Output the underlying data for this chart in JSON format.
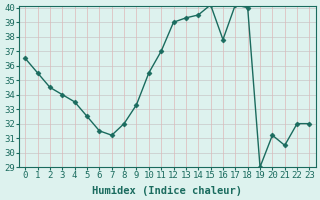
{
  "x": [
    0,
    1,
    2,
    3,
    4,
    5,
    6,
    7,
    8,
    9,
    10,
    11,
    12,
    13,
    14,
    15,
    16,
    17,
    18,
    19,
    20,
    21,
    22,
    23
  ],
  "y": [
    36.5,
    35.5,
    34.5,
    34.0,
    33.5,
    32.5,
    31.5,
    31.2,
    32.0,
    33.3,
    35.5,
    37.0,
    39.0,
    39.3,
    39.5,
    40.2,
    37.8,
    40.2,
    40.0,
    29.0,
    31.2,
    30.5,
    32.0,
    32.0
  ],
  "xlabel": "Humidex (Indice chaleur)",
  "ylim": [
    29,
    40
  ],
  "xlim": [
    -0.5,
    23.5
  ],
  "yticks": [
    29,
    30,
    31,
    32,
    33,
    34,
    35,
    36,
    37,
    38,
    39,
    40
  ],
  "xticks": [
    0,
    1,
    2,
    3,
    4,
    5,
    6,
    7,
    8,
    9,
    10,
    11,
    12,
    13,
    14,
    15,
    16,
    17,
    18,
    19,
    20,
    21,
    22,
    23
  ],
  "line_color": "#1a6b5e",
  "marker": "D",
  "marker_size": 2.5,
  "bg_color": "#ddf2ee",
  "grid_color_h": "#c8c8c8",
  "grid_color_v": "#ddb8b8",
  "axis_color": "#1a6b5e",
  "tick_label_fontsize": 6.5,
  "xlabel_fontsize": 7.5
}
